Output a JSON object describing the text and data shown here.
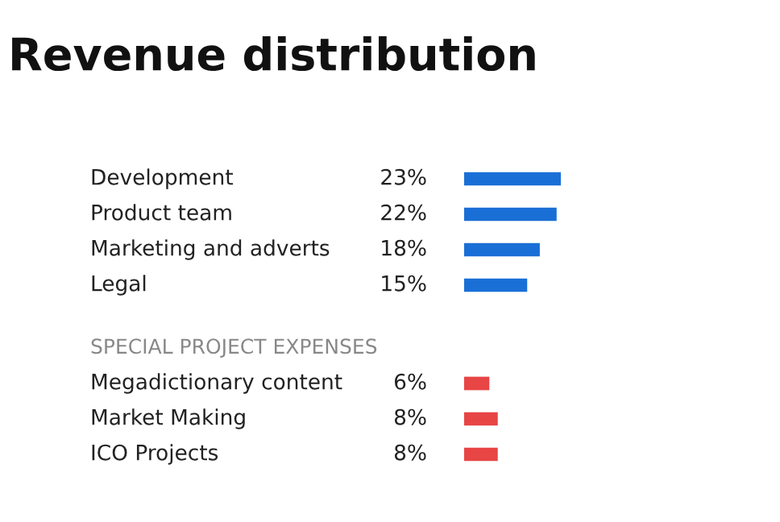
{
  "chart_data": [
    {
      "type": "bar",
      "orientation": "horizontal",
      "title": "Revenue distribution",
      "categories": [
        "Development",
        "Product team",
        "Marketing and adverts",
        "Legal"
      ],
      "values": [
        23,
        22,
        18,
        15
      ],
      "value_labels": [
        "23%",
        "22%",
        "18%",
        "15%"
      ],
      "color": "#1a6fd6"
    },
    {
      "type": "bar",
      "orientation": "horizontal",
      "title": "SPECIAL PROJECT EXPENSES",
      "categories": [
        "Megadictionary content",
        "Market Making",
        "ICO Projects"
      ],
      "values": [
        6,
        8,
        8
      ],
      "value_labels": [
        "6%",
        "8%",
        "8%"
      ],
      "color": "#e84545"
    }
  ]
}
